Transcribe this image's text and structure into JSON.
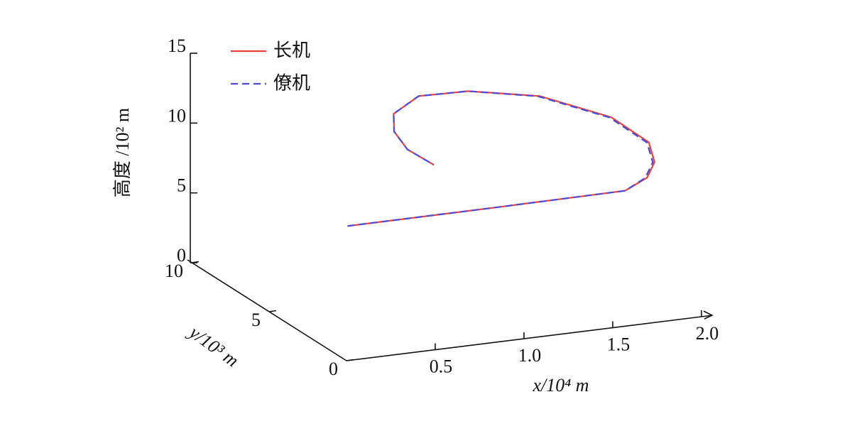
{
  "chart_data": {
    "type": "line3d",
    "xlabel": "x/10⁴ m",
    "ylabel": "y/10³ m",
    "zlabel": "高度 /10² m",
    "xlim": [
      0,
      2
    ],
    "ylim": [
      0,
      10
    ],
    "zlim": [
      0,
      15
    ],
    "xticks": [
      {
        "value": 0.5,
        "label": "0.5"
      },
      {
        "value": 1,
        "label": "1.0"
      },
      {
        "value": 1.5,
        "label": "1.5"
      },
      {
        "value": 2,
        "label": "2.0"
      }
    ],
    "yticks": [
      0,
      5,
      10
    ],
    "zticks": [
      0,
      5,
      10,
      15
    ],
    "legend": "upper left",
    "series": [
      {
        "name": "长机",
        "color": "#e8413c",
        "dash": "solid",
        "x": [
          0.01,
          0.84,
          1.57,
          1.76,
          1.89,
          2.01,
          2.02,
          1.84,
          1.54,
          1.27,
          1.02,
          0.89,
          0.82,
          0.83
        ],
        "y": [
          0.04,
          0,
          0,
          0.76,
          1.77,
          3.52,
          6.05,
          8.62,
          9.8,
          9.9,
          8.65,
          7.13,
          5.47,
          3.87
        ],
        "z": [
          9.6,
          9.65,
          9.7,
          9.8,
          10,
          10,
          10,
          10,
          10,
          10,
          10,
          10,
          10,
          10
        ]
      },
      {
        "name": "僚机",
        "color": "#4b4bd6",
        "dash": "dashed",
        "x": [
          0.01,
          0.84,
          1.57,
          1.75,
          1.88,
          2.0,
          2.01,
          1.83,
          1.54,
          1.27,
          1.02,
          0.89,
          0.82,
          0.83
        ],
        "y": [
          0.04,
          0,
          0,
          0.76,
          1.77,
          3.52,
          6.05,
          8.62,
          9.8,
          9.9,
          8.65,
          7.13,
          5.47,
          3.87
        ],
        "z": [
          9.6,
          9.65,
          9.7,
          9.8,
          10,
          10,
          10,
          10,
          10,
          10,
          10,
          10,
          10,
          10
        ]
      }
    ]
  }
}
